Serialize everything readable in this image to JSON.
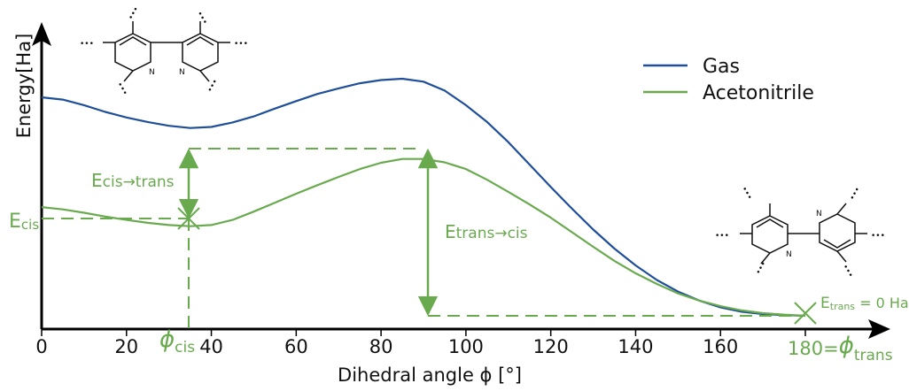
{
  "chart_data": {
    "type": "line",
    "xlabel": "Dihedral angle ϕ [°]",
    "ylabel": "Energy[Ha]",
    "xlim": [
      0,
      180
    ],
    "xticks": [
      0,
      20,
      40,
      60,
      80,
      100,
      120,
      140,
      160,
      180
    ],
    "xtick_labels": [
      "0",
      "20",
      "40",
      "60",
      "80",
      "100",
      "120",
      "140",
      "160",
      "180"
    ],
    "grid": false,
    "legend_position": "top-right",
    "series": [
      {
        "name": "Gas",
        "color": "#1f4e9a",
        "x": [
          0,
          5,
          10,
          15,
          20,
          25,
          30,
          35,
          40,
          45,
          50,
          55,
          60,
          65,
          70,
          75,
          80,
          85,
          90,
          95,
          100,
          105,
          110,
          115,
          120,
          125,
          130,
          135,
          140,
          145,
          150,
          155,
          160,
          165,
          170,
          175,
          180
        ],
        "y": [
          0.0975,
          0.0965,
          0.094,
          0.091,
          0.0885,
          0.0865,
          0.0848,
          0.0838,
          0.0843,
          0.0863,
          0.089,
          0.0925,
          0.0958,
          0.099,
          0.1015,
          0.1038,
          0.1052,
          0.1058,
          0.1045,
          0.1005,
          0.094,
          0.0865,
          0.0775,
          0.0675,
          0.0575,
          0.0478,
          0.0385,
          0.03,
          0.0225,
          0.016,
          0.0108,
          0.0068,
          0.0038,
          0.0018,
          0.0008,
          0.0003,
          0.0
        ]
      },
      {
        "name": "Acetonitrile",
        "color": "#6aaa4f",
        "x": [
          0,
          5,
          10,
          15,
          20,
          25,
          30,
          35,
          40,
          45,
          50,
          55,
          60,
          65,
          70,
          75,
          80,
          85,
          90,
          95,
          100,
          105,
          110,
          115,
          120,
          125,
          130,
          135,
          140,
          145,
          150,
          155,
          160,
          165,
          170,
          175,
          180
        ],
        "y": [
          0.0485,
          0.0475,
          0.046,
          0.0443,
          0.0428,
          0.0415,
          0.0405,
          0.04,
          0.0405,
          0.0428,
          0.0465,
          0.0505,
          0.0545,
          0.0583,
          0.062,
          0.0655,
          0.0683,
          0.07,
          0.07,
          0.0685,
          0.0655,
          0.0607,
          0.0553,
          0.0497,
          0.0438,
          0.0373,
          0.0308,
          0.0245,
          0.019,
          0.0142,
          0.01,
          0.0068,
          0.0043,
          0.0024,
          0.0012,
          0.0005,
          0.0
        ]
      }
    ],
    "annotations": {
      "e_cis_sub": "cis",
      "e_cis_trans_sub": "cis→trans",
      "e_trans_cis_sub": "trans→cis",
      "e_trans_sub": "trans",
      "e_trans_value": " = 0 Ha",
      "phi_cis_sub": "cis",
      "phi_trans_prefix": "180=",
      "phi_trans_sub": "trans",
      "phi_cis_x": 35,
      "phi_trans_x": 180,
      "e_cis_y": 0.04,
      "e_top_y": 0.07,
      "e_trans_y": 0.0
    },
    "colors": {
      "gas": "#1f4e9a",
      "acetonitrile": "#6aaa4f",
      "axis": "#000000"
    }
  }
}
